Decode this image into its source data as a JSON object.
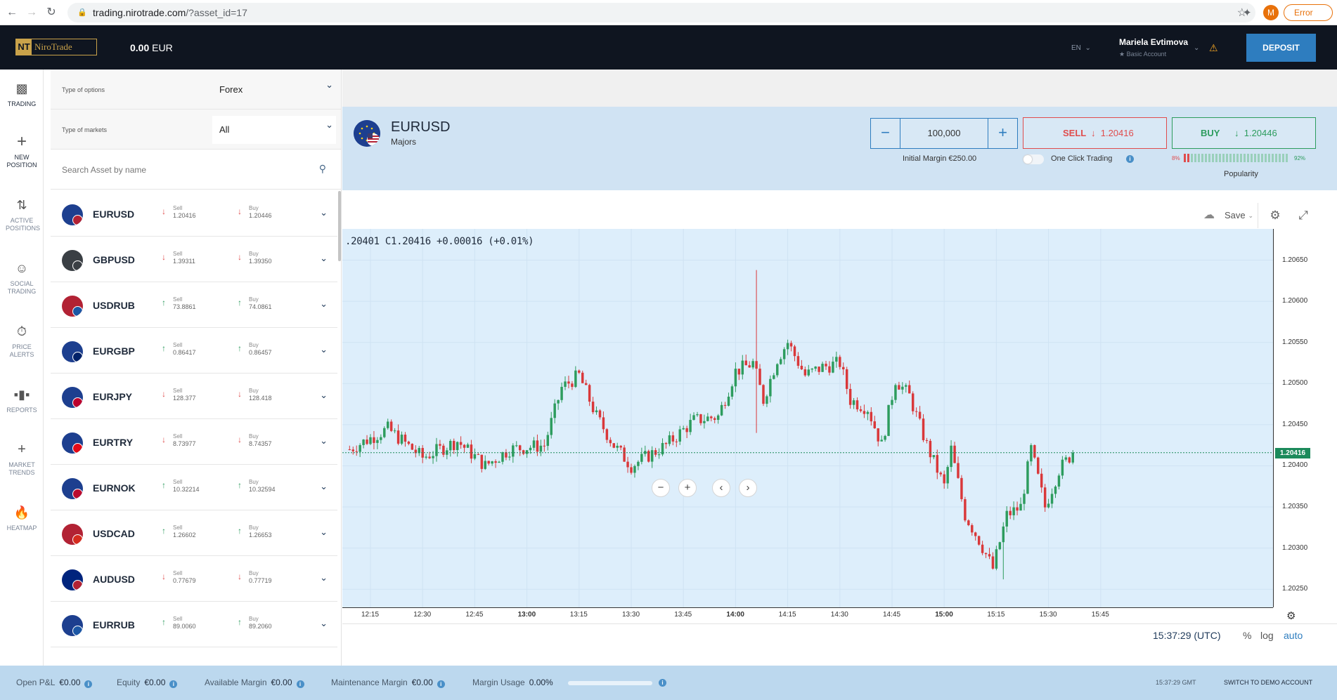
{
  "browser": {
    "url_host": "trading.nirotrade.com",
    "url_path": "/?asset_id=17",
    "profile_initial": "M",
    "status_pill": "Error"
  },
  "header": {
    "logo_text": "NiroTrade",
    "balance_amount": "0.00",
    "balance_currency": "EUR",
    "language": "EN",
    "user_name": "Mariela Evtimova",
    "account_type": "Basic Account",
    "deposit_label": "DEPOSIT"
  },
  "nav": [
    {
      "label": "TRADING",
      "icon": "bar-chart-icon"
    },
    {
      "label": "NEW POSITION",
      "icon": "plus-icon"
    },
    {
      "label": "ACTIVE POSITIONS",
      "icon": "up-down-arrows-icon"
    },
    {
      "label": "SOCIAL TRADING",
      "icon": "face-icon"
    },
    {
      "label": "PRICE ALERTS",
      "icon": "stopwatch-icon"
    },
    {
      "label": "REPORTS",
      "icon": "report-bars-icon"
    },
    {
      "label": "MARKET TRENDS",
      "icon": "plus-icon"
    },
    {
      "label": "HEATMAP",
      "icon": "flame-icon"
    }
  ],
  "filters": {
    "options_label": "Type of options",
    "options_value": "Forex",
    "markets_label": "Type of markets",
    "markets_value": "All",
    "search_placeholder": "Search Asset by name"
  },
  "assets": [
    {
      "symbol": "EURUSD",
      "sell": "1.20416",
      "buy": "1.20446",
      "sell_dir": "down",
      "buy_dir": "down",
      "flag": "#1d3f8f",
      "sub": "#b22234"
    },
    {
      "symbol": "GBPUSD",
      "sell": "1.39311",
      "buy": "1.39350",
      "sell_dir": "down",
      "buy_dir": "down",
      "flag": "#3a3f44",
      "sub": "#3a3f44"
    },
    {
      "symbol": "USDRUB",
      "sell": "73.8861",
      "buy": "74.0861",
      "sell_dir": "up",
      "buy_dir": "up",
      "flag": "#b22234",
      "sub": "#1c57a5"
    },
    {
      "symbol": "EURGBP",
      "sell": "0.86417",
      "buy": "0.86457",
      "sell_dir": "up",
      "buy_dir": "up",
      "flag": "#1d3f8f",
      "sub": "#012169"
    },
    {
      "symbol": "EURJPY",
      "sell": "128.377",
      "buy": "128.418",
      "sell_dir": "down",
      "buy_dir": "down",
      "flag": "#1d3f8f",
      "sub": "#bc002d"
    },
    {
      "symbol": "EURTRY",
      "sell": "8.73977",
      "buy": "8.74357",
      "sell_dir": "down",
      "buy_dir": "down",
      "flag": "#1d3f8f",
      "sub": "#e30a17"
    },
    {
      "symbol": "EURNOK",
      "sell": "10.32214",
      "buy": "10.32594",
      "sell_dir": "up",
      "buy_dir": "up",
      "flag": "#1d3f8f",
      "sub": "#ba0c2f"
    },
    {
      "symbol": "USDCAD",
      "sell": "1.26602",
      "buy": "1.26653",
      "sell_dir": "up",
      "buy_dir": "up",
      "flag": "#b22234",
      "sub": "#d52b1e"
    },
    {
      "symbol": "AUDUSD",
      "sell": "0.77679",
      "buy": "0.77719",
      "sell_dir": "down",
      "buy_dir": "down",
      "flag": "#00247d",
      "sub": "#b22234"
    },
    {
      "symbol": "EURRUB",
      "sell": "89.0060",
      "buy": "89.2060",
      "sell_dir": "up",
      "buy_dir": "up",
      "flag": "#1d3f8f",
      "sub": "#1c57a5"
    }
  ],
  "price_labels": {
    "sell": "Sell",
    "buy": "Buy"
  },
  "instrument": {
    "symbol": "EURUSD",
    "category": "Majors",
    "quantity": "100,000",
    "initial_margin": "Initial Margin €250.00",
    "sell_label": "SELL",
    "sell_price": "1.20416",
    "buy_label": "BUY",
    "buy_price": "1.20446",
    "one_click_label": "One Click Trading",
    "one_click_on": false,
    "popularity_low": "8%",
    "popularity_high": "92%",
    "popularity_label": "Popularity",
    "popularity_fraction": 0.92
  },
  "chart_toolbar": {
    "save_label": "Save"
  },
  "chart_data": {
    "type": "candlestick",
    "ohlc_readout": ".20401  C1.20416  +0.00016 (+0.01%)",
    "y_ticks": [
      "1.20650",
      "1.20600",
      "1.20550",
      "1.20500",
      "1.20450",
      "1.20400",
      "1.20350",
      "1.20300",
      "1.20250"
    ],
    "y_range": [
      1.20228,
      1.20688
    ],
    "x_ticks": [
      {
        "label": "12:15",
        "bold": false
      },
      {
        "label": "12:30",
        "bold": false
      },
      {
        "label": "12:45",
        "bold": false
      },
      {
        "label": "13:00",
        "bold": true
      },
      {
        "label": "13:15",
        "bold": false
      },
      {
        "label": "13:30",
        "bold": false
      },
      {
        "label": "13:45",
        "bold": false
      },
      {
        "label": "14:00",
        "bold": true
      },
      {
        "label": "14:15",
        "bold": false
      },
      {
        "label": "14:30",
        "bold": false
      },
      {
        "label": "14:45",
        "bold": false
      },
      {
        "label": "15:00",
        "bold": true
      },
      {
        "label": "15:15",
        "bold": false
      },
      {
        "label": "15:30",
        "bold": false
      },
      {
        "label": "15:45",
        "bold": false
      }
    ],
    "current_price": "1.20416",
    "current_price_value": 1.20416,
    "up_color": "#2d9c5e",
    "down_color": "#d9383a",
    "candle_interval_minutes": 1,
    "first_candle_time": "12:09",
    "close_path": [
      [
        "12:09",
        1.2042
      ],
      [
        "12:20",
        1.20445
      ],
      [
        "12:30",
        1.2041
      ],
      [
        "12:40",
        1.2043
      ],
      [
        "12:48",
        1.204
      ],
      [
        "12:55",
        1.2042
      ],
      [
        "13:05",
        1.20425
      ],
      [
        "13:10",
        1.20495
      ],
      [
        "13:15",
        1.2051
      ],
      [
        "13:20",
        1.2046
      ],
      [
        "13:25",
        1.20425
      ],
      [
        "13:30",
        1.204
      ],
      [
        "13:40",
        1.20425
      ],
      [
        "13:48",
        1.20455
      ],
      [
        "13:55",
        1.2046
      ],
      [
        "14:00",
        1.20515
      ],
      [
        "14:05",
        1.20525
      ],
      [
        "14:08",
        1.2048
      ],
      [
        "14:12",
        1.2053
      ],
      [
        "14:15",
        1.2055
      ],
      [
        "14:20",
        1.2051
      ],
      [
        "14:25",
        1.2052
      ],
      [
        "14:30",
        1.20525
      ],
      [
        "14:33",
        1.2048
      ],
      [
        "14:38",
        1.2047
      ],
      [
        "14:42",
        1.20425
      ],
      [
        "14:46",
        1.20505
      ],
      [
        "14:50",
        1.20485
      ],
      [
        "14:55",
        1.20425
      ],
      [
        "15:00",
        1.20375
      ],
      [
        "15:02",
        1.2042
      ],
      [
        "15:06",
        1.2034
      ],
      [
        "15:10",
        1.2031
      ],
      [
        "15:14",
        1.20275
      ],
      [
        "15:18",
        1.2034
      ],
      [
        "15:22",
        1.2035
      ],
      [
        "15:25",
        1.2042
      ],
      [
        "15:29",
        1.2035
      ],
      [
        "15:33",
        1.20395
      ],
      [
        "15:37",
        1.20416
      ]
    ]
  },
  "chart_footer": {
    "clock": "15:37:29 (UTC)",
    "scale_percent": "%",
    "scale_log": "log",
    "scale_auto": "auto"
  },
  "footer": {
    "open_pl_label": "Open P&L",
    "open_pl_value": "€0.00",
    "equity_label": "Equity",
    "equity_value": "€0.00",
    "available_margin_label": "Available Margin",
    "available_margin_value": "€0.00",
    "maintenance_margin_label": "Maintenance Margin",
    "maintenance_margin_value": "€0.00",
    "margin_usage_label": "Margin Usage",
    "margin_usage_value": "0.00%",
    "margin_usage_fraction": 0,
    "time": "15:37:29 GMT",
    "demo_label": "SWITCH TO DEMO ACCOUNT"
  }
}
